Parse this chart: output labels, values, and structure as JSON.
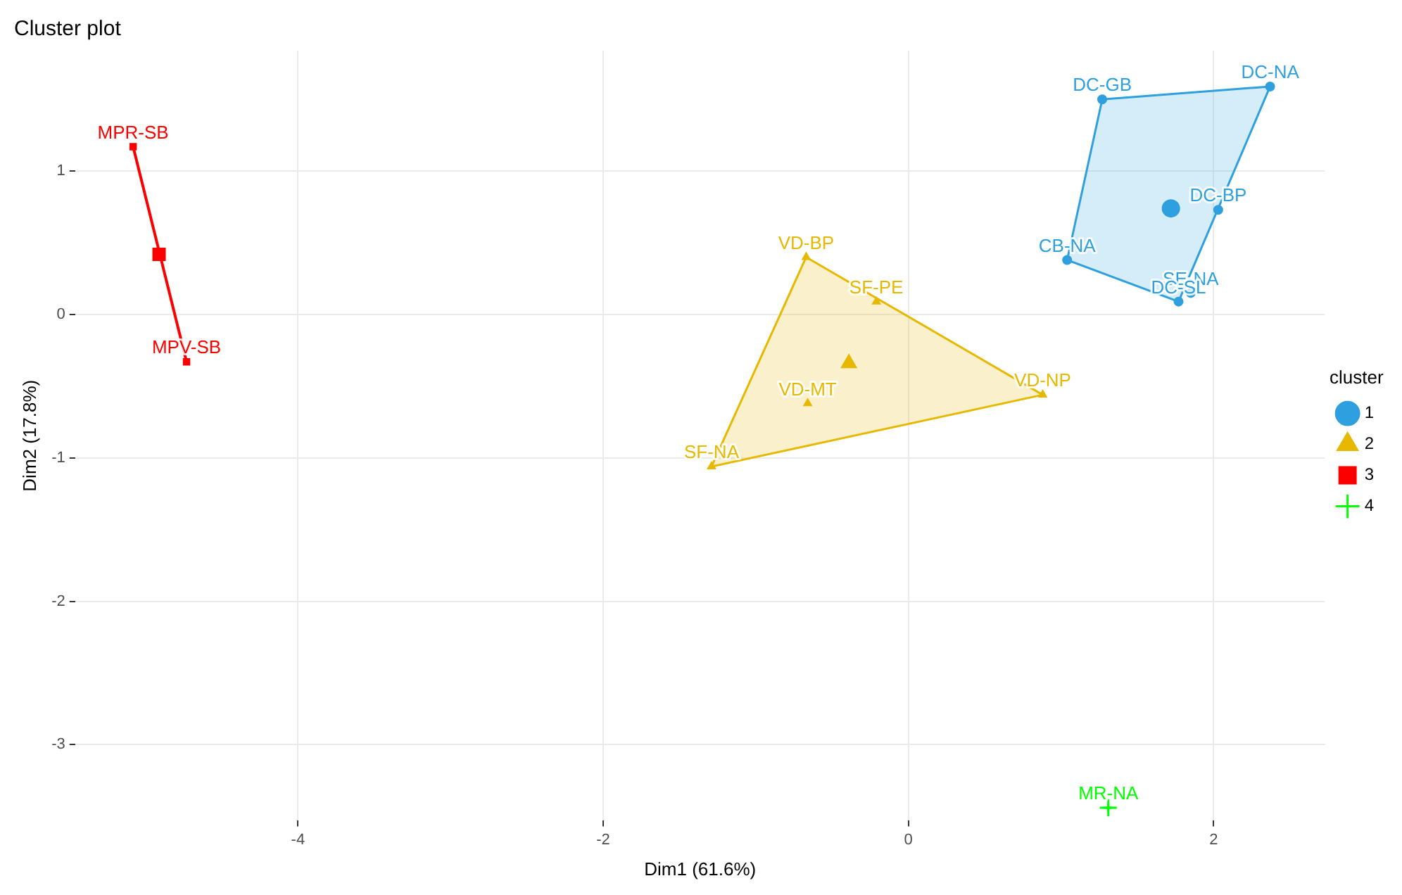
{
  "chart_data": {
    "type": "scatter",
    "title": "Cluster plot",
    "xlabel": "Dim1 (61.6%)",
    "ylabel": "Dim2 (17.8%)",
    "legend_title": "cluster",
    "legend": "right",
    "grid": true,
    "xlim": [
      -5.46,
      2.73
    ],
    "xticks": [
      -4,
      -2,
      0,
      2
    ],
    "ylim": [
      -3.53,
      1.84
    ],
    "yticks": [
      -3,
      -2,
      -1,
      0,
      1
    ],
    "series": [
      {
        "type": "area",
        "color": "#2e9fdf",
        "x": [
          1.27,
          2.37,
          1.77,
          1.04,
          1.27
        ],
        "values": [
          1.5,
          1.59,
          0.09,
          0.38,
          1.5
        ]
      },
      {
        "type": "area",
        "color": "#e7b800",
        "x": [
          -0.67,
          0.88,
          -1.29,
          -0.67
        ],
        "values": [
          0.4,
          -0.56,
          -1.06,
          0.4
        ]
      },
      {
        "type": "line",
        "color": "#fc0000",
        "x": [
          -5.08,
          -4.73
        ],
        "values": [
          1.17,
          -0.33
        ]
      },
      {
        "name": "1",
        "color": "#2e9fdf",
        "marker": "circle",
        "x": [
          1.27,
          2.37,
          2.03,
          1.04,
          1.85,
          1.77
        ],
        "values": [
          1.5,
          1.59,
          0.73,
          0.38,
          0.15,
          0.09
        ],
        "value_labels": [
          "DC-GB",
          "DC-NA",
          "DC-BP",
          "CB-NA",
          "SE-NA",
          "DC-SL"
        ]
      },
      {
        "name": "2",
        "color": "#e7b800",
        "marker": "triangle",
        "x": [
          -0.67,
          -0.21,
          -0.66,
          0.88,
          -1.29
        ],
        "values": [
          0.4,
          0.09,
          -0.62,
          -0.56,
          -1.06
        ],
        "value_labels": [
          "VD-BP",
          "SF-PE",
          "VD-MT",
          "VD-NP",
          "SF-NA"
        ]
      },
      {
        "name": "3",
        "color": "#fc0000",
        "marker": "square",
        "x": [
          -5.08,
          -4.73
        ],
        "values": [
          1.17,
          -0.33
        ],
        "value_labels": [
          "MPR-SB",
          "MPV-SB"
        ]
      },
      {
        "name": "4",
        "color": "#00ff00",
        "marker": "cross",
        "x": [
          1.31
        ],
        "values": [
          -3.44
        ],
        "value_labels": [
          "MR-NA"
        ]
      },
      {
        "color": "#2e9fdf",
        "marker": "circle",
        "x": [
          1.72
        ],
        "values": [
          0.74
        ]
      },
      {
        "color": "#e7b800",
        "marker": "triangle",
        "x": [
          -0.39
        ],
        "values": [
          -0.34
        ]
      },
      {
        "color": "#fc0000",
        "marker": "square",
        "x": [
          -4.91
        ],
        "values": [
          0.42
        ]
      },
      {
        "color": "#00ff00",
        "marker": "cross",
        "x": [
          1.31
        ],
        "values": [
          -3.44
        ]
      }
    ]
  }
}
